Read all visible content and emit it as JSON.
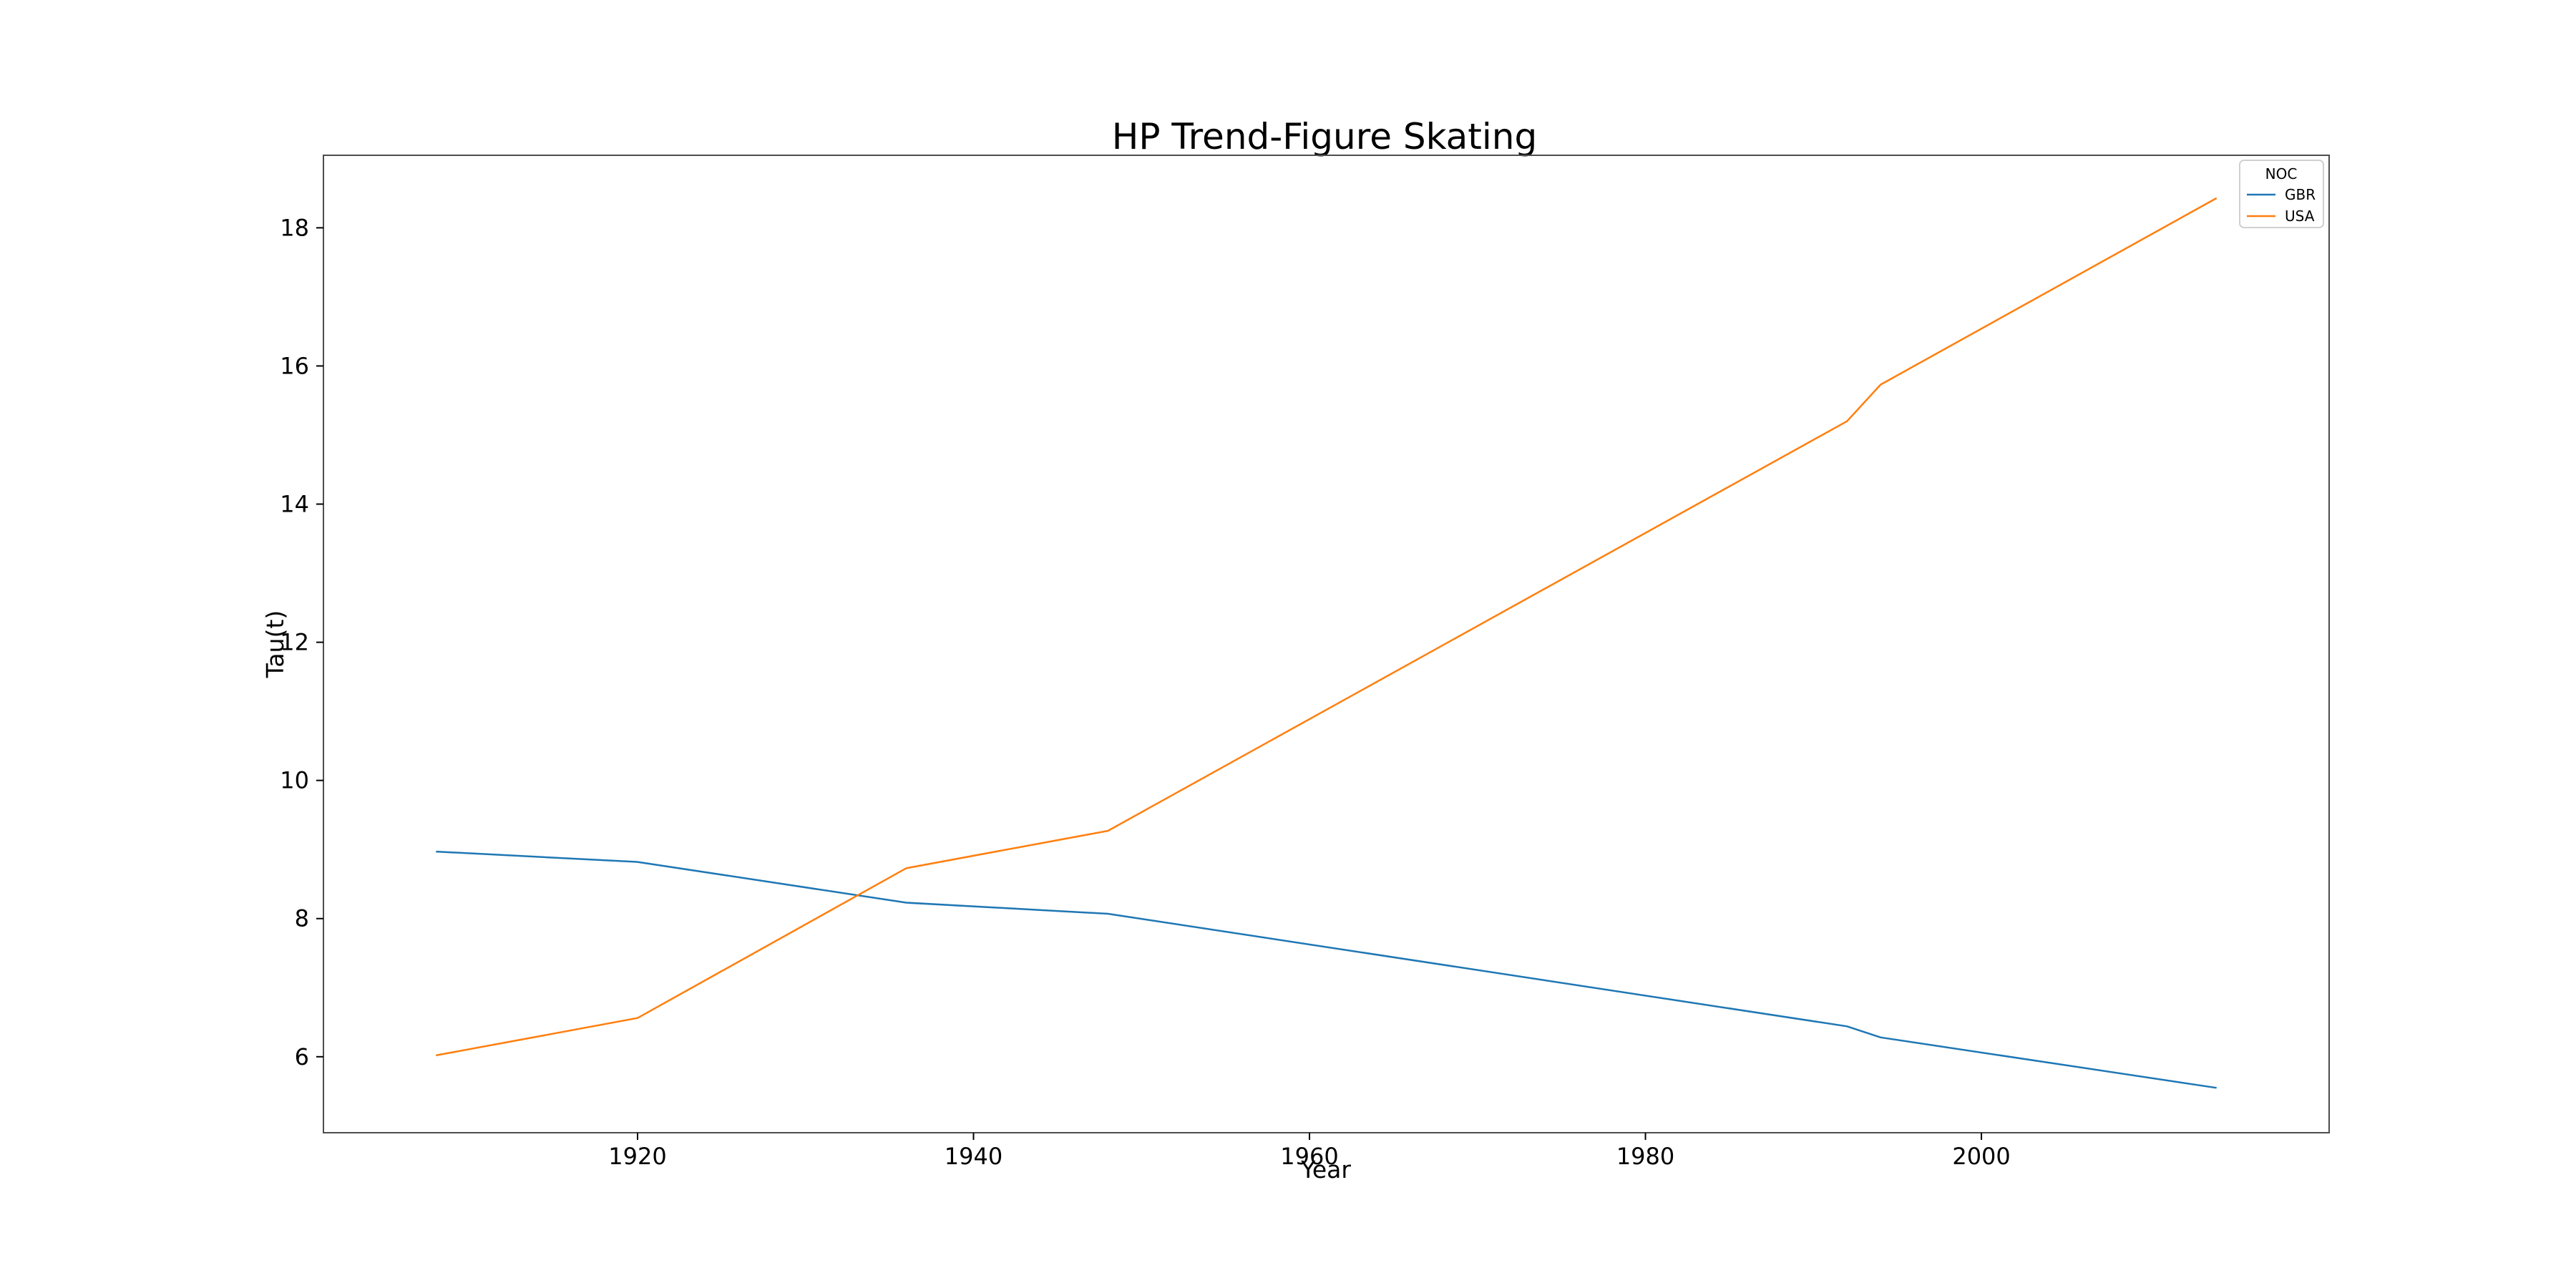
{
  "chart_data": {
    "type": "line",
    "title": "HP Trend-Figure Skating",
    "xlabel": "Year",
    "ylabel": "Tau(t)",
    "xlim": [
      1901.3,
      2020.7
    ],
    "ylim": [
      4.9,
      19.05
    ],
    "xticks": [
      1920,
      1940,
      1960,
      1980,
      2000
    ],
    "yticks": [
      6,
      8,
      10,
      12,
      14,
      16,
      18
    ],
    "grid": false,
    "legend": {
      "title": "NOC",
      "placement": "top-right"
    },
    "series": [
      {
        "name": "GBR",
        "color": "#1f77b4",
        "x": [
          1908,
          1920,
          1936,
          1948,
          1992,
          1994,
          2014
        ],
        "y": [
          8.97,
          8.82,
          8.23,
          8.07,
          6.44,
          6.28,
          5.55
        ]
      },
      {
        "name": "USA",
        "color": "#ff7f0e",
        "x": [
          1908,
          1920,
          1936,
          1948,
          1992,
          1994,
          2014
        ],
        "y": [
          6.02,
          6.56,
          8.73,
          9.27,
          15.2,
          15.73,
          18.43
        ]
      }
    ]
  }
}
